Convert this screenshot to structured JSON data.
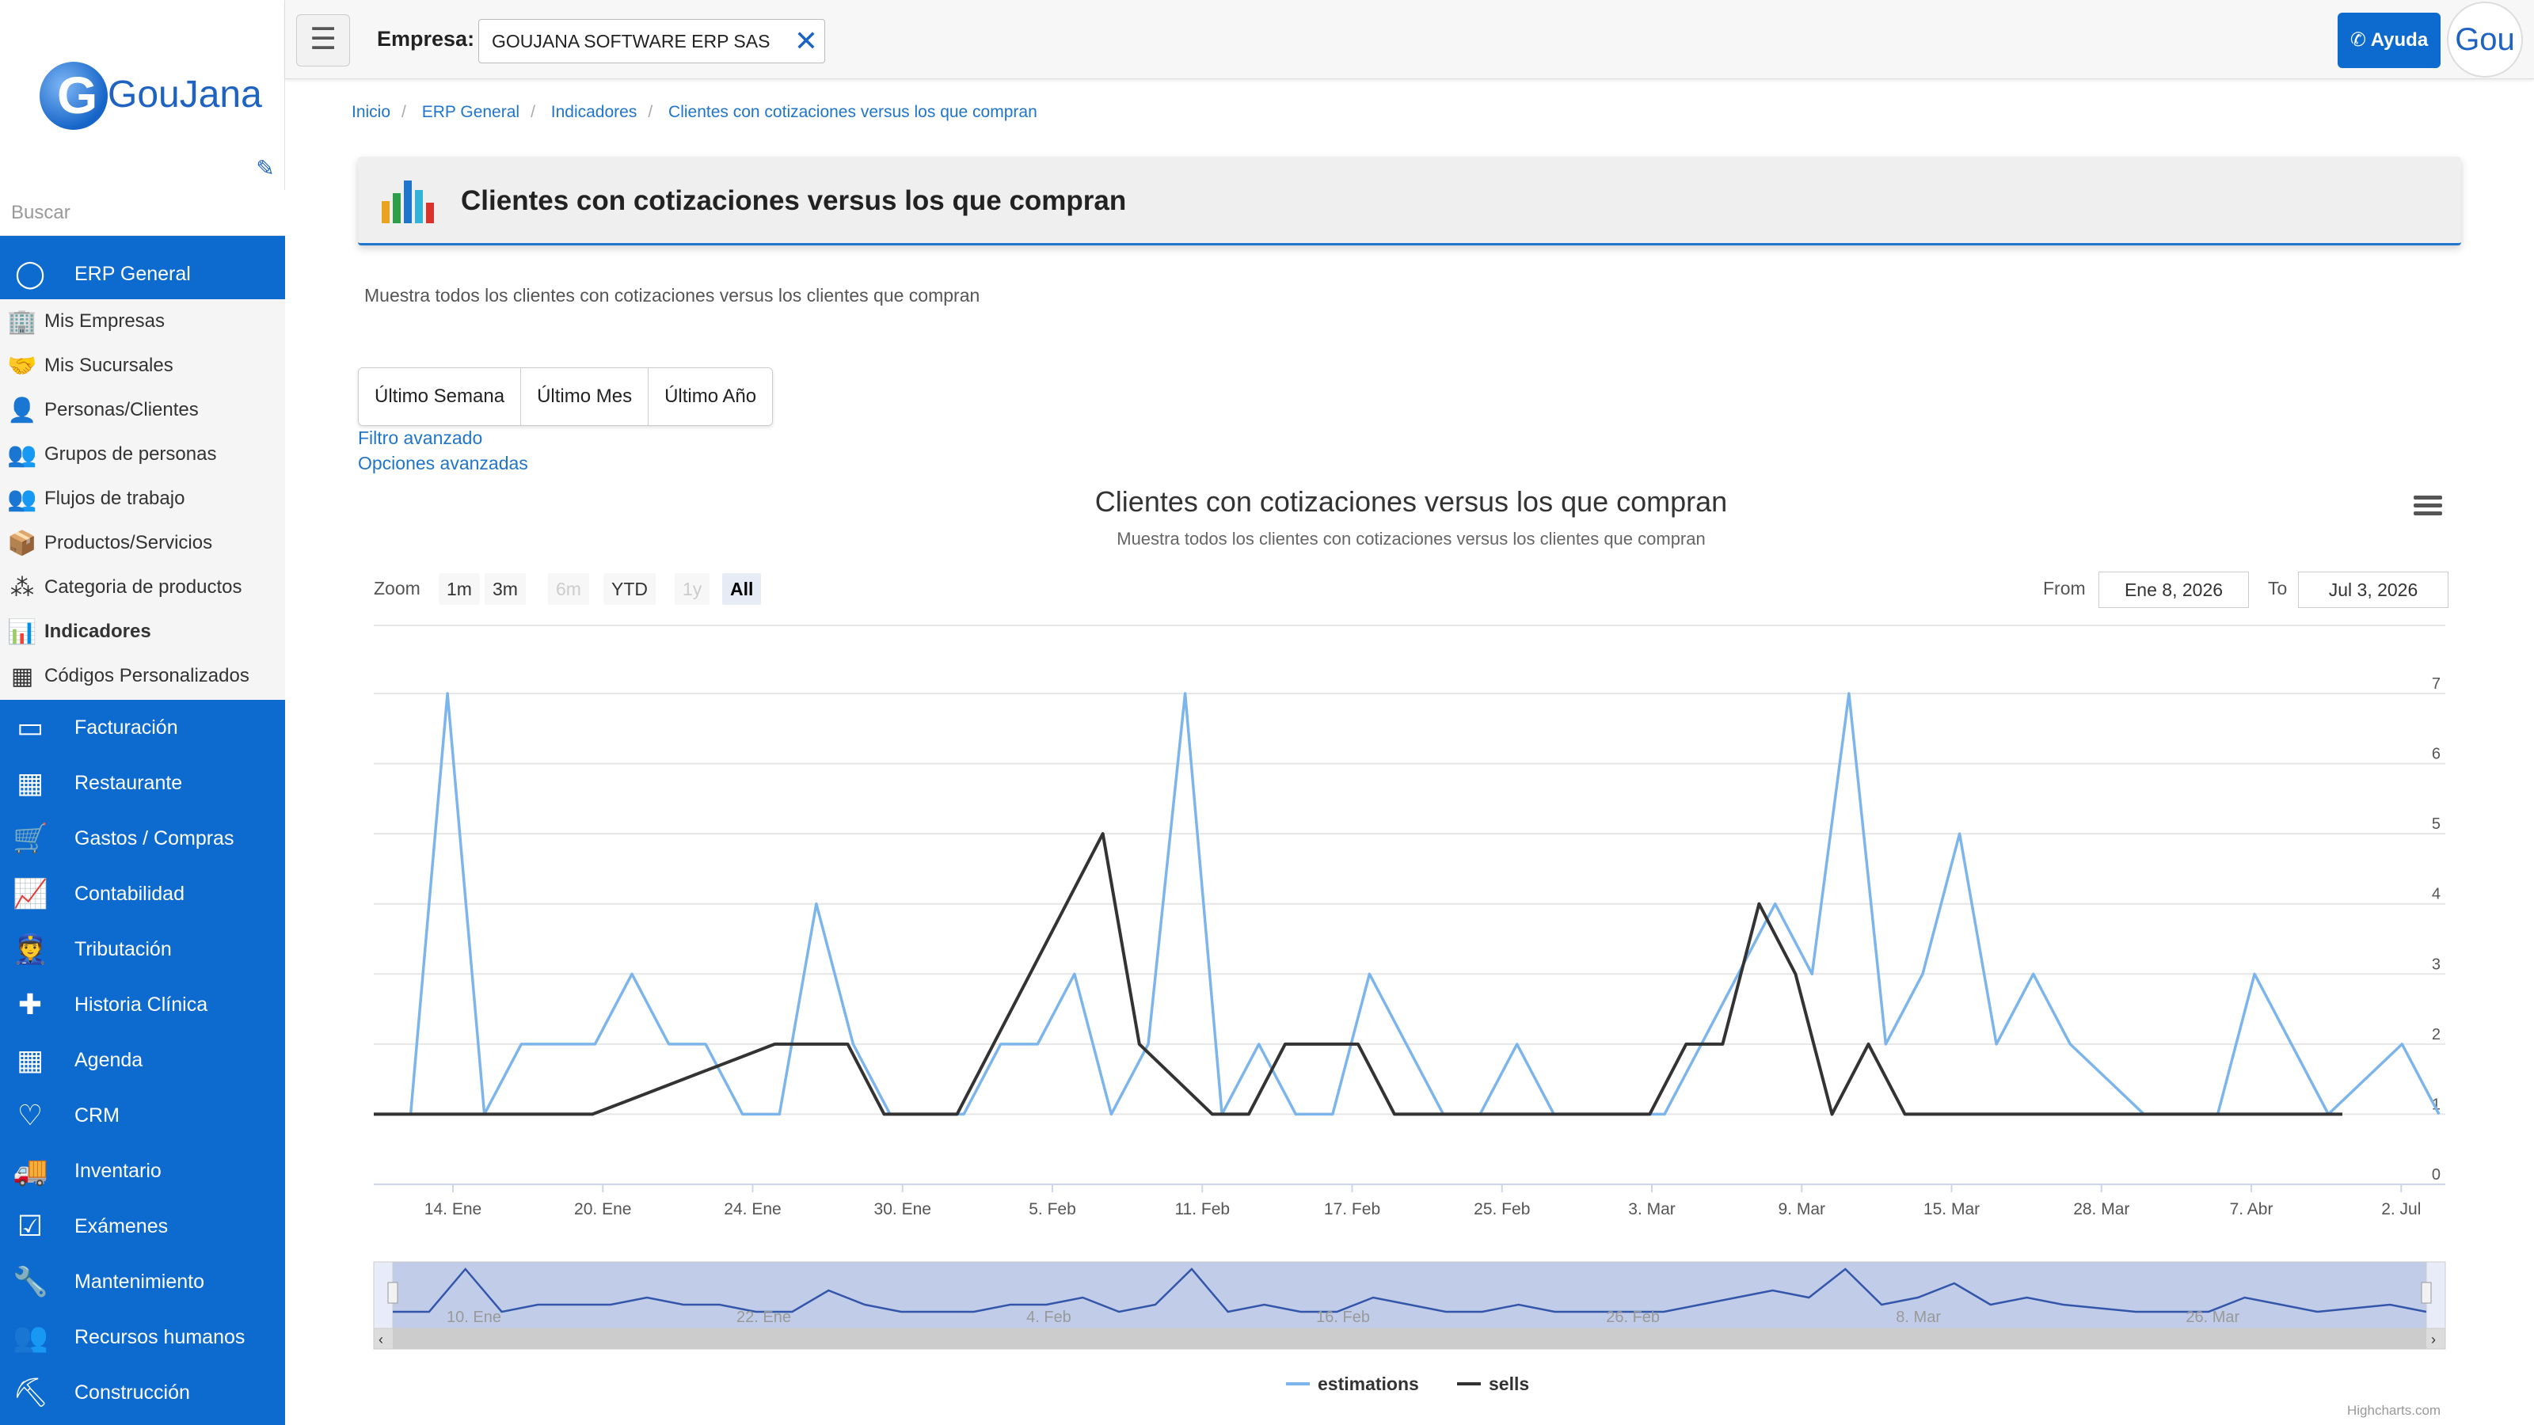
{
  "sidebar": {
    "logo_text": "GouJana",
    "logo_letter": "G",
    "search_placeholder": "Buscar",
    "section_header": "ERP General",
    "sub_items": [
      {
        "label": "Mis Empresas",
        "icon": "building-icon"
      },
      {
        "label": "Mis Sucursales",
        "icon": "handshake-icon"
      },
      {
        "label": "Personas/Clientes",
        "icon": "person-icon"
      },
      {
        "label": "Grupos de personas",
        "icon": "group-icon"
      },
      {
        "label": "Flujos de trabajo",
        "icon": "workflow-icon"
      },
      {
        "label": "Productos/Servicios",
        "icon": "box-icon"
      },
      {
        "label": "Categoria de productos",
        "icon": "tree-icon"
      },
      {
        "label": "Indicadores",
        "icon": "bar-chart-icon"
      },
      {
        "label": "Códigos Personalizados",
        "icon": "barcode-icon"
      }
    ],
    "nav_items": [
      {
        "label": "Facturación",
        "icon": "card-icon"
      },
      {
        "label": "Restaurante",
        "icon": "calendar-icon"
      },
      {
        "label": "Gastos / Compras",
        "icon": "cart-icon"
      },
      {
        "label": "Contabilidad",
        "icon": "line-chart-icon"
      },
      {
        "label": "Tributación",
        "icon": "officer-icon"
      },
      {
        "label": "Historia Clínica",
        "icon": "plus-square-icon"
      },
      {
        "label": "Agenda",
        "icon": "calendar-icon"
      },
      {
        "label": "CRM",
        "icon": "heart-icon"
      },
      {
        "label": "Inventario",
        "icon": "truck-icon"
      },
      {
        "label": "Exámenes",
        "icon": "check-square-icon"
      },
      {
        "label": "Mantenimiento",
        "icon": "wrench-icon"
      },
      {
        "label": "Recursos humanos",
        "icon": "people-icon"
      },
      {
        "label": "Construcción",
        "icon": "excavator-icon"
      }
    ]
  },
  "topbar": {
    "empresa_label": "Empresa:",
    "empresa_value": "GOUJANA SOFTWARE ERP SAS",
    "help_label": "Ayuda",
    "avatar_text": "Gou"
  },
  "breadcrumb": [
    "Inicio",
    "ERP General",
    "Indicadores",
    "Clientes con cotizaciones versus los que compran"
  ],
  "page": {
    "title": "Clientes con cotizaciones versus los que compran",
    "description": "Muestra todos los clientes con cotizaciones versus los clientes que compran",
    "period_buttons": [
      "Último Semana",
      "Último Mes",
      "Último Año"
    ],
    "link_filter": "Filtro avanzado",
    "link_options": "Opciones avanzadas"
  },
  "chart_controls": {
    "zoom_label": "Zoom",
    "zoom_buttons": [
      "1m",
      "3m",
      "6m",
      "YTD",
      "1y",
      "All"
    ],
    "zoom_selected": "All",
    "zoom_disabled": [
      "6m",
      "1y"
    ],
    "from_label": "From",
    "from_value": "Ene 8, 2026",
    "to_label": "To",
    "to_value": "Jul 3, 2026",
    "credits": "Highcharts.com"
  },
  "colors": {
    "sidebar_blue": "#0d6bd0",
    "estimations": "#7cb5ec",
    "sells": "#333333"
  },
  "chart_data": {
    "type": "line",
    "title": "Clientes con cotizaciones versus los que compran",
    "subtitle": "Muestra todos los clientes con cotizaciones versus los clientes que compran",
    "ylim": [
      0,
      7
    ],
    "y_ticks": [
      0,
      1,
      2,
      3,
      4,
      5,
      6,
      7
    ],
    "x_tick_labels": [
      "14. Ene",
      "20. Ene",
      "24. Ene",
      "30. Ene",
      "5. Feb",
      "11. Feb",
      "17. Feb",
      "25. Feb",
      "3. Mar",
      "9. Mar",
      "15. Mar",
      "28. Mar",
      "7. Abr",
      "2. Jul"
    ],
    "navigator_labels": [
      "10. Ene",
      "22. Ene",
      "4. Feb",
      "16. Feb",
      "26. Feb",
      "8. Mar",
      "26. Mar"
    ],
    "legend": "bottom-center",
    "grid": true,
    "series": [
      {
        "name": "estimations",
        "values": [
          1,
          1,
          7,
          1,
          2,
          2,
          2,
          3,
          2,
          2,
          1,
          1,
          4,
          2,
          1,
          1,
          1,
          2,
          2,
          3,
          1,
          2,
          7,
          1,
          2,
          1,
          1,
          3,
          2,
          1,
          1,
          2,
          1,
          1,
          1,
          1,
          2,
          3,
          4,
          3,
          7,
          2,
          3,
          5,
          2,
          3,
          2,
          1.5,
          1,
          1,
          1,
          3,
          2,
          1,
          1.5,
          2,
          1
        ]
      },
      {
        "name": "sells",
        "values": [
          1,
          1,
          1,
          1,
          1,
          1,
          1,
          1.2,
          1.4,
          1.6,
          1.8,
          2,
          2,
          2,
          1,
          1,
          1,
          2,
          3,
          4,
          5,
          2,
          1.5,
          1,
          1,
          2,
          2,
          2,
          1,
          1,
          1,
          1,
          1,
          1,
          1,
          1,
          2,
          2,
          4,
          3,
          1,
          2,
          1,
          1,
          1,
          1,
          1,
          1,
          1,
          1,
          1,
          1,
          1,
          1,
          1
        ]
      }
    ]
  }
}
